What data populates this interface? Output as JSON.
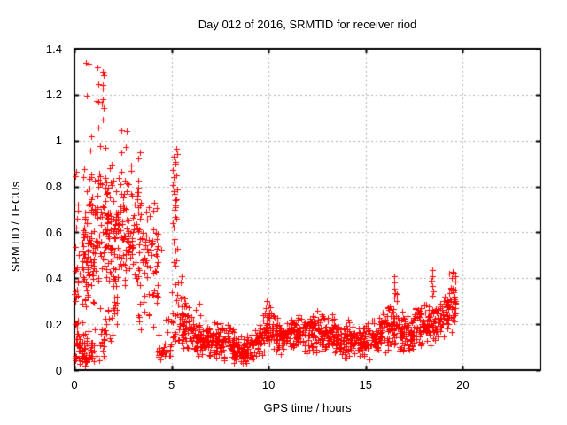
{
  "chart_data": {
    "type": "scatter",
    "title": "Day 012 of 2016, SRMTID for receiver riod",
    "xlabel": "GPS time / hours",
    "ylabel": "SRMTID / TECUs",
    "xlim": [
      0,
      24
    ],
    "ylim": [
      0,
      1.4
    ],
    "xticks": [
      {
        "v": 0,
        "label": "0"
      },
      {
        "v": 5,
        "label": "5"
      },
      {
        "v": 10,
        "label": "10"
      },
      {
        "v": 15,
        "label": "15"
      },
      {
        "v": 20,
        "label": "20"
      }
    ],
    "yticks": [
      {
        "v": 0,
        "label": "0"
      },
      {
        "v": 0.2,
        "label": "0.2"
      },
      {
        "v": 0.4,
        "label": "0.4"
      },
      {
        "v": 0.6,
        "label": "0.6"
      },
      {
        "v": 0.8,
        "label": "0.8"
      },
      {
        "v": 1,
        "label": "1"
      },
      {
        "v": 1.2,
        "label": "1.2"
      },
      {
        "v": 1.4,
        "label": "1.4"
      }
    ],
    "grid": true,
    "legend": "none",
    "marker": {
      "shape": "plus",
      "size": 7,
      "color": "#ff0000"
    },
    "colors": {
      "marker": "#ff0000",
      "grid": "#b3b3b3",
      "border": "#000000",
      "text": "#000000",
      "background": "#ffffff"
    },
    "data": {
      "seed": 42,
      "outliers": [
        [
          0.59,
          1.34
        ],
        [
          0.71,
          1.335
        ],
        [
          1.18,
          1.32
        ],
        [
          1.47,
          1.3
        ],
        [
          1.56,
          1.295
        ],
        [
          1.52,
          1.283
        ],
        [
          1.25,
          1.245
        ],
        [
          1.44,
          1.24
        ],
        [
          1.47,
          1.228
        ],
        [
          0.64,
          1.195
        ],
        [
          1.14,
          1.172
        ],
        [
          1.21,
          1.168
        ],
        [
          1.44,
          1.18
        ],
        [
          1.4,
          1.16
        ],
        [
          1.49,
          1.142
        ],
        [
          1.47,
          1.09
        ],
        [
          1.21,
          1.055
        ],
        [
          0.86,
          1.02
        ],
        [
          2.42,
          1.045
        ],
        [
          2.7,
          1.04
        ],
        [
          0.83,
          0.955
        ],
        [
          1.33,
          0.975
        ],
        [
          1.59,
          0.968
        ],
        [
          2.42,
          0.95
        ],
        [
          2.65,
          0.973
        ],
        [
          3.38,
          0.95
        ],
        [
          3.3,
          0.92
        ],
        [
          0.06,
          0.845
        ],
        [
          0.11,
          0.862
        ],
        [
          0.14,
          0.66
        ],
        [
          0.19,
          0.72
        ],
        [
          0.09,
          0.62
        ],
        [
          0.23,
          0.5
        ],
        [
          0.05,
          0.432
        ],
        [
          0.16,
          0.38
        ],
        [
          0.03,
          0.3
        ],
        [
          5.23,
          0.965
        ],
        [
          5.12,
          0.93
        ],
        [
          5.18,
          0.9
        ],
        [
          5.08,
          0.87
        ],
        [
          5.25,
          0.85
        ],
        [
          5.15,
          0.82
        ],
        [
          5.1,
          0.78
        ],
        [
          5.2,
          0.74
        ],
        [
          5.14,
          0.7
        ],
        [
          5.24,
          0.66
        ],
        [
          5.09,
          0.62
        ],
        [
          5.17,
          0.57
        ],
        [
          5.22,
          0.52
        ],
        [
          5.11,
          0.47
        ],
        [
          5.52,
          0.41
        ],
        [
          5.49,
          0.38
        ],
        [
          4.46,
          0.525
        ],
        [
          6.43,
          0.29
        ],
        [
          9.92,
          0.3
        ],
        [
          10.02,
          0.285
        ],
        [
          9.85,
          0.27
        ],
        [
          16.47,
          0.41
        ],
        [
          16.49,
          0.38
        ],
        [
          16.45,
          0.355
        ],
        [
          16.51,
          0.335
        ],
        [
          16.48,
          0.315
        ],
        [
          16.6,
          0.33
        ],
        [
          16.62,
          0.3
        ],
        [
          18.42,
          0.435
        ],
        [
          18.45,
          0.41
        ],
        [
          18.4,
          0.39
        ],
        [
          18.44,
          0.365
        ],
        [
          18.47,
          0.345
        ],
        [
          18.43,
          0.325
        ],
        [
          19.3,
          0.42
        ],
        [
          19.5,
          0.43
        ],
        [
          19.55,
          0.425
        ],
        [
          19.6,
          0.41
        ],
        [
          19.45,
          0.4
        ],
        [
          19.62,
          0.385
        ]
      ],
      "clusters": [
        {
          "x0": 0.02,
          "x1": 0.28,
          "y0": 0.04,
          "y1": 0.78,
          "n": 35,
          "dist": "low"
        },
        {
          "x0": 0.25,
          "x1": 1.0,
          "y0": 0.02,
          "y1": 0.13,
          "n": 45,
          "dist": "uniform"
        },
        {
          "x0": 0.35,
          "x1": 1.05,
          "y0": 0.08,
          "y1": 0.92,
          "n": 100,
          "dist": "mid"
        },
        {
          "x0": 1.0,
          "x1": 1.6,
          "y0": 0.04,
          "y1": 0.18,
          "n": 18,
          "dist": "uniform"
        },
        {
          "x0": 1.05,
          "x1": 1.75,
          "y0": 0.2,
          "y1": 1.0,
          "n": 55,
          "dist": "mid"
        },
        {
          "x0": 1.6,
          "x1": 2.65,
          "y0": 0.25,
          "y1": 0.92,
          "n": 115,
          "dist": "mid"
        },
        {
          "x0": 1.6,
          "x1": 2.2,
          "y0": 0.1,
          "y1": 0.3,
          "n": 18,
          "dist": "uniform"
        },
        {
          "x0": 2.6,
          "x1": 3.35,
          "y0": 0.3,
          "y1": 0.93,
          "n": 60,
          "dist": "mid"
        },
        {
          "x0": 3.25,
          "x1": 4.3,
          "y0": 0.15,
          "y1": 0.88,
          "n": 75,
          "dist": "mid"
        },
        {
          "x0": 4.25,
          "x1": 5.0,
          "y0": 0.05,
          "y1": 0.42,
          "n": 22,
          "dist": "low"
        },
        {
          "x0": 4.3,
          "x1": 4.9,
          "y0": 0.03,
          "y1": 0.1,
          "n": 7,
          "dist": "uniform"
        },
        {
          "x0": 5.03,
          "x1": 5.3,
          "y0": 0.1,
          "y1": 0.95,
          "n": 30,
          "dist": "uniform"
        },
        {
          "x0": 5.28,
          "x1": 5.65,
          "y0": 0.12,
          "y1": 0.45,
          "n": 16,
          "dist": "low"
        }
      ],
      "band": {
        "points_per_hour": 85,
        "nodes": [
          [
            5.5,
            0.07,
            0.34
          ],
          [
            6.0,
            0.06,
            0.28
          ],
          [
            6.5,
            0.05,
            0.26
          ],
          [
            7.0,
            0.04,
            0.22
          ],
          [
            7.5,
            0.03,
            0.22
          ],
          [
            7.9,
            0.03,
            0.24
          ],
          [
            8.3,
            0.02,
            0.17
          ],
          [
            8.8,
            0.02,
            0.15
          ],
          [
            9.2,
            0.03,
            0.18
          ],
          [
            9.6,
            0.05,
            0.25
          ],
          [
            10.0,
            0.06,
            0.29
          ],
          [
            10.4,
            0.06,
            0.24
          ],
          [
            10.9,
            0.06,
            0.22
          ],
          [
            11.3,
            0.07,
            0.26
          ],
          [
            11.8,
            0.06,
            0.24
          ],
          [
            12.3,
            0.07,
            0.28
          ],
          [
            12.8,
            0.05,
            0.26
          ],
          [
            13.3,
            0.06,
            0.24
          ],
          [
            13.8,
            0.04,
            0.22
          ],
          [
            14.3,
            0.05,
            0.24
          ],
          [
            14.8,
            0.02,
            0.2
          ],
          [
            15.3,
            0.04,
            0.22
          ],
          [
            15.8,
            0.06,
            0.26
          ],
          [
            16.2,
            0.08,
            0.3
          ],
          [
            16.6,
            0.08,
            0.31
          ],
          [
            17.0,
            0.07,
            0.27
          ],
          [
            17.4,
            0.06,
            0.26
          ],
          [
            17.8,
            0.08,
            0.3
          ],
          [
            18.2,
            0.09,
            0.31
          ],
          [
            18.6,
            0.1,
            0.3
          ],
          [
            19.0,
            0.12,
            0.33
          ],
          [
            19.3,
            0.14,
            0.38
          ],
          [
            19.55,
            0.17,
            0.42
          ],
          [
            19.68,
            0.2,
            0.4
          ]
        ]
      }
    }
  }
}
